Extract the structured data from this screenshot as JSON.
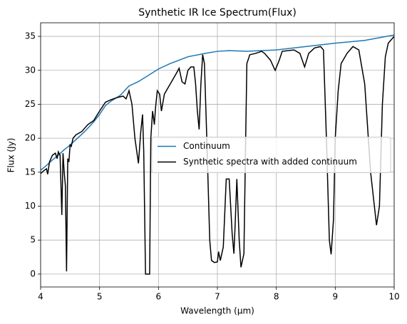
{
  "chart_data": {
    "type": "line",
    "title": "Synthetic IR Ice Spectrum(Flux)",
    "x_label": "Wavelength (µm)",
    "y_label": "Flux (Jy)",
    "xlim": [
      4,
      10
    ],
    "ylim": [
      -1.9,
      37
    ],
    "xticks": [
      4,
      5,
      6,
      7,
      8,
      9,
      10
    ],
    "yticks": [
      0,
      5,
      10,
      15,
      20,
      25,
      30,
      35
    ],
    "grid": true,
    "legend": "center right",
    "series": [
      {
        "name": "Continuum",
        "color": "#1f77b4",
        "x": [
          4.0,
          4.1,
          4.2,
          4.3,
          4.4,
          4.5,
          4.6,
          4.75,
          4.9,
          5.0,
          5.1,
          5.2,
          5.35,
          5.5,
          5.65,
          5.8,
          6.0,
          6.2,
          6.5,
          6.8,
          7.0,
          7.2,
          7.5,
          8.0,
          8.5,
          9.0,
          9.5,
          10.0
        ],
        "values": [
          15.3,
          16.0,
          16.8,
          17.5,
          18.3,
          19.0,
          19.8,
          21.0,
          22.4,
          23.5,
          24.8,
          25.5,
          26.3,
          27.7,
          28.3,
          29.1,
          30.2,
          31.0,
          32.0,
          32.5,
          32.8,
          32.9,
          32.8,
          33.0,
          33.5,
          34.0,
          34.4,
          35.2
        ]
      },
      {
        "name": "Synthetic spectra with added continuum",
        "color": "#000000",
        "x": [
          4.0,
          4.05,
          4.1,
          4.12,
          4.15,
          4.2,
          4.25,
          4.28,
          4.3,
          4.33,
          4.36,
          4.38,
          4.4,
          4.42,
          4.44,
          4.46,
          4.48,
          4.5,
          4.52,
          4.55,
          4.6,
          4.7,
          4.8,
          4.9,
          5.0,
          5.1,
          5.2,
          5.3,
          5.4,
          5.45,
          5.5,
          5.55,
          5.6,
          5.66,
          5.7,
          5.73,
          5.75,
          5.78,
          5.85,
          5.87,
          5.9,
          5.93,
          5.95,
          5.98,
          6.02,
          6.05,
          6.1,
          6.2,
          6.3,
          6.35,
          6.4,
          6.45,
          6.5,
          6.55,
          6.6,
          6.63,
          6.66,
          6.69,
          6.72,
          6.75,
          6.78,
          6.82,
          6.87,
          6.9,
          6.95,
          7.0,
          7.02,
          7.05,
          7.1,
          7.15,
          7.2,
          7.25,
          7.28,
          7.3,
          7.33,
          7.37,
          7.4,
          7.45,
          7.48,
          7.5,
          7.55,
          7.65,
          7.75,
          7.8,
          7.9,
          7.98,
          8.05,
          8.1,
          8.3,
          8.4,
          8.48,
          8.55,
          8.65,
          8.75,
          8.8,
          8.85,
          8.9,
          8.93,
          8.97,
          9.0,
          9.05,
          9.1,
          9.2,
          9.3,
          9.4,
          9.5,
          9.6,
          9.7,
          9.75,
          9.8,
          9.85,
          9.9,
          10.0
        ],
        "values": [
          14.8,
          15.2,
          15.5,
          14.7,
          16.5,
          17.5,
          17.8,
          17.0,
          18.0,
          17.5,
          8.7,
          17.8,
          15.0,
          13.0,
          0.4,
          17.0,
          16.5,
          19.0,
          18.8,
          20.0,
          20.5,
          21.0,
          22.0,
          22.6,
          24.0,
          25.3,
          25.7,
          26.0,
          26.2,
          25.8,
          27.0,
          25.0,
          20.0,
          16.3,
          21.0,
          23.5,
          18.0,
          0.0,
          0.0,
          20.0,
          24.0,
          22.0,
          24.5,
          27.0,
          26.5,
          24.0,
          26.5,
          28.0,
          29.5,
          30.3,
          28.3,
          28.0,
          30.0,
          30.5,
          30.5,
          28.0,
          24.0,
          21.3,
          28.0,
          32.3,
          31.0,
          20.0,
          5.0,
          2.0,
          1.7,
          1.8,
          3.3,
          2.0,
          4.0,
          14.0,
          14.0,
          6.0,
          3.0,
          7.0,
          14.0,
          5.0,
          1.0,
          3.0,
          20.0,
          31.0,
          32.3,
          32.5,
          32.8,
          32.5,
          31.5,
          30.0,
          31.5,
          32.8,
          33.0,
          32.5,
          30.5,
          32.5,
          33.3,
          33.5,
          33.0,
          20.0,
          5.0,
          2.9,
          8.0,
          20.0,
          27.0,
          31.0,
          32.5,
          33.5,
          33.0,
          28.0,
          15.0,
          7.2,
          10.0,
          25.0,
          32.0,
          34.0,
          35.0
        ]
      }
    ]
  }
}
